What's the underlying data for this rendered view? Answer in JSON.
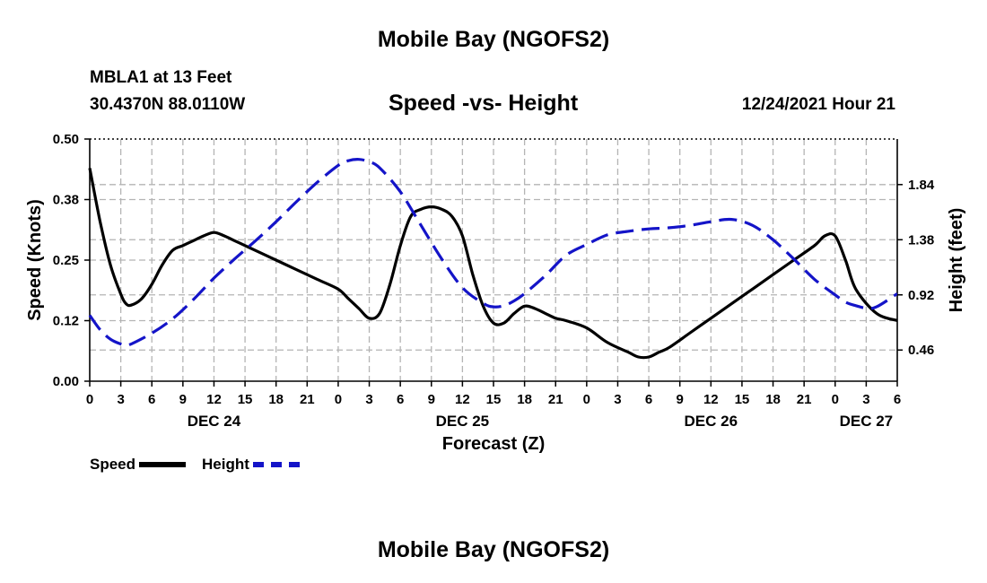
{
  "header": {
    "title": "Mobile Bay (NGOFS2)",
    "station": "MBLA1 at 13 Feet",
    "coords": "30.4370N  88.0110W",
    "subtitle": "Speed -vs- Height",
    "timestamp": "12/24/2021 Hour 21"
  },
  "footer": {
    "title": "Mobile Bay (NGOFS2)"
  },
  "legend": {
    "speed_label": "Speed",
    "height_label": "Height"
  },
  "colors": {
    "speed": "#000000",
    "height": "#1414c8",
    "grid": "#b4b4b4"
  },
  "chart_data": {
    "type": "line",
    "title": "Speed -vs- Height",
    "xlabel": "Forecast (Z)",
    "ylabel": "Speed (Knots)",
    "y2label": "Height (feet)",
    "xlim": [
      0,
      78
    ],
    "ylim": [
      0,
      0.5
    ],
    "y2lim": [
      0.2,
      2.22
    ],
    "grid": true,
    "legend_position": "bottom-left",
    "x_ticks": [
      {
        "x": 0,
        "label": "0"
      },
      {
        "x": 3,
        "label": "3"
      },
      {
        "x": 6,
        "label": "6"
      },
      {
        "x": 9,
        "label": "9"
      },
      {
        "x": 12,
        "label": "12"
      },
      {
        "x": 15,
        "label": "15"
      },
      {
        "x": 18,
        "label": "18"
      },
      {
        "x": 21,
        "label": "21"
      },
      {
        "x": 24,
        "label": "0"
      },
      {
        "x": 27,
        "label": "3"
      },
      {
        "x": 30,
        "label": "6"
      },
      {
        "x": 33,
        "label": "9"
      },
      {
        "x": 36,
        "label": "12"
      },
      {
        "x": 39,
        "label": "15"
      },
      {
        "x": 42,
        "label": "18"
      },
      {
        "x": 45,
        "label": "21"
      },
      {
        "x": 48,
        "label": "0"
      },
      {
        "x": 51,
        "label": "3"
      },
      {
        "x": 54,
        "label": "6"
      },
      {
        "x": 57,
        "label": "9"
      },
      {
        "x": 60,
        "label": "12"
      },
      {
        "x": 63,
        "label": "15"
      },
      {
        "x": 66,
        "label": "18"
      },
      {
        "x": 69,
        "label": "21"
      },
      {
        "x": 72,
        "label": "0"
      },
      {
        "x": 75,
        "label": "3"
      },
      {
        "x": 78,
        "label": "6"
      }
    ],
    "day_labels": [
      {
        "x": 12,
        "label": "DEC 24"
      },
      {
        "x": 36,
        "label": "DEC 25"
      },
      {
        "x": 60,
        "label": "DEC 26"
      },
      {
        "x": 75,
        "label": "DEC 27"
      }
    ],
    "y_ticks": [
      {
        "v": 0,
        "label": "0.00"
      },
      {
        "v": 0.125,
        "label": "0.12"
      },
      {
        "v": 0.25,
        "label": "0.25"
      },
      {
        "v": 0.375,
        "label": "0.38"
      },
      {
        "v": 0.5,
        "label": "0.50"
      }
    ],
    "y2_ticks": [
      {
        "v": 0.46,
        "label": "0.46"
      },
      {
        "v": 0.92,
        "label": "0.92"
      },
      {
        "v": 1.38,
        "label": "1.38"
      },
      {
        "v": 1.84,
        "label": "1.84"
      }
    ],
    "series": [
      {
        "name": "Speed",
        "axis": "left",
        "style": "solid",
        "x": [
          0,
          1,
          2,
          3,
          3.5,
          4,
          5,
          6,
          7,
          8,
          9,
          10,
          11,
          12,
          13,
          14,
          15,
          16,
          18,
          20,
          22,
          24,
          25,
          26,
          27,
          28,
          29,
          30,
          31,
          32,
          33,
          34,
          35,
          36,
          37,
          38,
          39,
          40,
          41,
          42,
          43,
          44,
          45,
          46,
          48,
          50,
          52,
          53,
          54,
          55,
          56,
          58,
          60,
          62,
          64,
          66,
          68,
          70,
          71,
          72,
          73,
          74,
          76,
          78
        ],
        "y": [
          0.44,
          0.33,
          0.24,
          0.18,
          0.16,
          0.157,
          0.17,
          0.2,
          0.24,
          0.27,
          0.28,
          0.29,
          0.3,
          0.307,
          0.3,
          0.29,
          0.28,
          0.27,
          0.25,
          0.23,
          0.21,
          0.19,
          0.17,
          0.15,
          0.13,
          0.14,
          0.2,
          0.28,
          0.34,
          0.355,
          0.36,
          0.355,
          0.34,
          0.3,
          0.22,
          0.155,
          0.12,
          0.12,
          0.14,
          0.155,
          0.15,
          0.14,
          0.13,
          0.125,
          0.11,
          0.08,
          0.06,
          0.05,
          0.05,
          0.06,
          0.07,
          0.1,
          0.13,
          0.16,
          0.19,
          0.22,
          0.25,
          0.28,
          0.3,
          0.3,
          0.25,
          0.19,
          0.14,
          0.125
        ]
      },
      {
        "name": "Height",
        "axis": "right",
        "style": "dashed",
        "x": [
          0,
          1,
          2,
          3,
          3.5,
          4,
          6,
          8,
          10,
          12,
          14,
          16,
          18,
          20,
          22,
          24,
          25,
          26,
          27,
          28,
          30,
          32,
          34,
          36,
          38,
          39,
          40,
          41,
          42,
          44,
          46,
          48,
          50,
          52,
          54,
          56,
          58,
          60,
          62,
          64,
          66,
          68,
          70,
          72,
          73,
          74,
          75,
          76,
          78
        ],
        "y": [
          0.75,
          0.63,
          0.55,
          0.51,
          0.5,
          0.51,
          0.6,
          0.72,
          0.88,
          1.06,
          1.22,
          1.37,
          1.53,
          1.7,
          1.86,
          2.0,
          2.04,
          2.05,
          2.03,
          1.98,
          1.78,
          1.5,
          1.22,
          0.98,
          0.85,
          0.82,
          0.83,
          0.87,
          0.93,
          1.08,
          1.25,
          1.34,
          1.42,
          1.45,
          1.47,
          1.48,
          1.5,
          1.53,
          1.55,
          1.5,
          1.38,
          1.22,
          1.05,
          0.92,
          0.86,
          0.83,
          0.81,
          0.82,
          0.93
        ]
      }
    ]
  }
}
